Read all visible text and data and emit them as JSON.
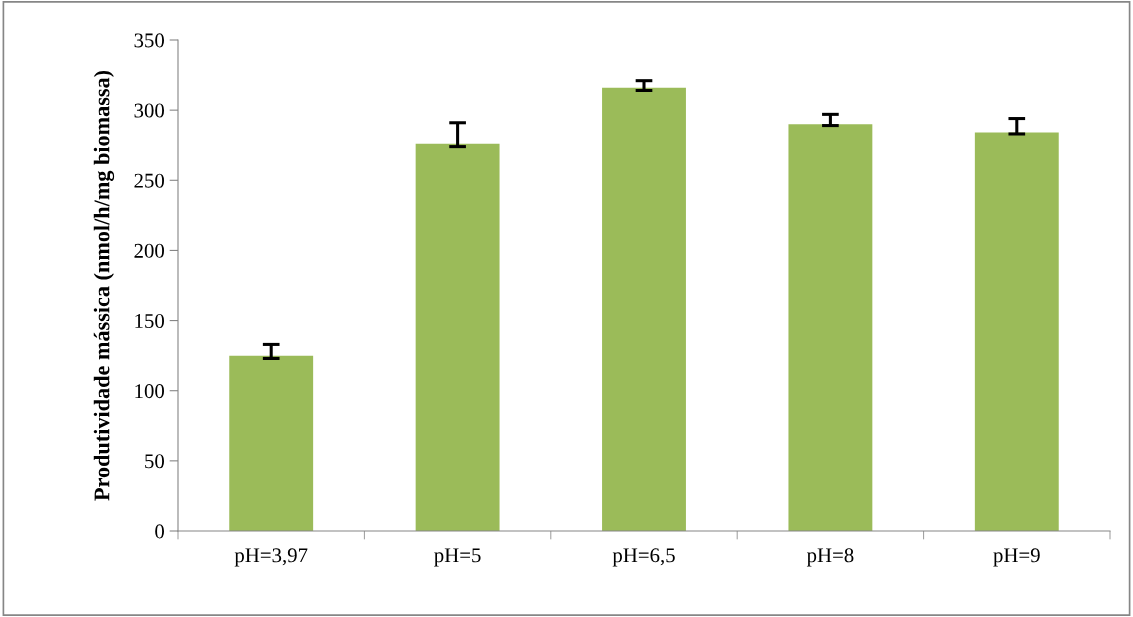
{
  "chart_data": {
    "type": "bar",
    "ylabel": "Produtividade mássica (nmol/h/mg biomassa)",
    "categories": [
      "pH=3,97",
      "pH=5",
      "pH=6,5",
      "pH=8",
      "pH=9"
    ],
    "values": [
      125,
      276,
      316,
      290,
      284
    ],
    "errors": [
      [
        123,
        133
      ],
      [
        274,
        291
      ],
      [
        314,
        321
      ],
      [
        289,
        297
      ],
      [
        283,
        294
      ]
    ],
    "color": "#9bbb59",
    "ylim": [
      0,
      350
    ],
    "yticks": [
      0,
      50,
      100,
      150,
      200,
      250,
      300,
      350
    ],
    "grid": false,
    "legend": false
  }
}
